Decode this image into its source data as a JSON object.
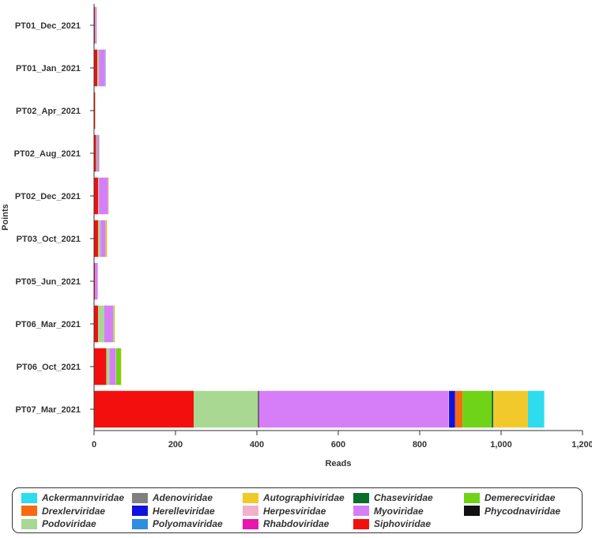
{
  "chart_data": {
    "type": "bar",
    "orientation": "horizontal",
    "stacked": true,
    "xlabel": "Reads",
    "ylabel": "Points",
    "xlim": [
      0,
      1200
    ],
    "xticks": [
      0,
      200,
      400,
      600,
      800,
      1000,
      1200
    ],
    "xtick_labels": [
      "0",
      "200",
      "400",
      "600",
      "800",
      "1,000",
      "1,200"
    ],
    "categories": [
      "PT01_Dec_2021",
      "PT01_Jan_2021",
      "PT02_Apr_2021",
      "PT02_Aug_2021",
      "PT02_Dec_2021",
      "PT03_Oct_2021",
      "PT05_Jun_2021",
      "PT06_Mar_2021",
      "PT06_Oct_2021",
      "PT07_Mar_2021"
    ],
    "series": [
      {
        "name": "Siphoviridae",
        "color": "#f40f0f",
        "values": [
          2,
          8,
          2,
          5,
          10,
          10,
          2,
          10,
          30,
          245
        ]
      },
      {
        "name": "Rhabdoviridae",
        "color": "#e815b0",
        "values": [
          0,
          0,
          0,
          0,
          0,
          0,
          0,
          0,
          0,
          0
        ]
      },
      {
        "name": "Polyomaviridae",
        "color": "#2e8ee0",
        "values": [
          0,
          0,
          0,
          0,
          0,
          0,
          0,
          0,
          0,
          0
        ]
      },
      {
        "name": "Podoviridae",
        "color": "#a8d892",
        "values": [
          1,
          4,
          0,
          2,
          2,
          6,
          0,
          15,
          8,
          158
        ]
      },
      {
        "name": "Phycodnaviridae",
        "color": "#111111",
        "values": [
          0,
          0,
          0,
          0,
          0,
          0,
          0,
          0,
          0,
          2
        ]
      },
      {
        "name": "Myoviridae",
        "color": "#d67ef8",
        "values": [
          3,
          15,
          0,
          5,
          22,
          12,
          7,
          22,
          15,
          465
        ]
      },
      {
        "name": "Herpesviridae",
        "color": "#f0b0cc",
        "values": [
          1,
          1,
          0,
          0,
          1,
          1,
          0,
          1,
          1,
          2
        ]
      },
      {
        "name": "Herelleviridae",
        "color": "#1010e0",
        "values": [
          0,
          0,
          0,
          0,
          0,
          0,
          0,
          0,
          0,
          15
        ]
      },
      {
        "name": "Drexlerviridae",
        "color": "#f86a10",
        "values": [
          0,
          0,
          1,
          0,
          0,
          0,
          0,
          0,
          0,
          18
        ]
      },
      {
        "name": "Demerecviridae",
        "color": "#6fd418",
        "values": [
          0,
          0,
          0,
          1,
          0,
          1,
          0,
          2,
          12,
          72
        ]
      },
      {
        "name": "Chaseviridae",
        "color": "#0a6e2a",
        "values": [
          0,
          0,
          0,
          0,
          0,
          0,
          0,
          0,
          0,
          4
        ]
      },
      {
        "name": "Autographiviridae",
        "color": "#f2c92a",
        "values": [
          0,
          0,
          0,
          0,
          1,
          2,
          0,
          1,
          1,
          85
        ]
      },
      {
        "name": "Adenoviridae",
        "color": "#808080",
        "values": [
          0,
          0,
          0,
          0,
          0,
          0,
          0,
          0,
          0,
          0
        ]
      },
      {
        "name": "Ackermannviridae",
        "color": "#2edcee",
        "values": [
          0,
          1,
          0,
          0,
          0,
          0,
          0,
          0,
          0,
          40
        ]
      }
    ],
    "legend": {
      "placement": "bottom",
      "order": [
        "Ackermannviridae",
        "Adenoviridae",
        "Autographiviridae",
        "Chaseviridae",
        "Demerecviridae",
        "Drexlerviridae",
        "Herelleviridae",
        "Herpesviridae",
        "Myoviridae",
        "Phycodnaviridae",
        "Podoviridae",
        "Polyomaviridae",
        "Rhabdoviridae",
        "Siphoviridae"
      ]
    }
  }
}
